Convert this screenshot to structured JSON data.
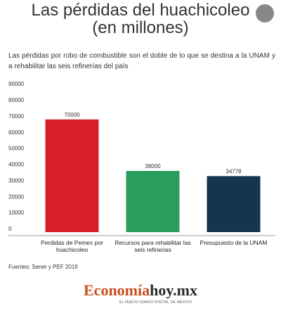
{
  "chart_data": {
    "type": "bar",
    "title": "Las pérdidas del huachicoleo (en millones)",
    "subtitle": "Las pérdidas por robo de combustible son el doble de lo que se destina a la UNAM y a rehabilitar las seis refinerías del país",
    "categories": [
      "Perdidas de Pemex por huachicoleo",
      "Recursos para rehabilitar las seis refinerias",
      "Presupuesto de la UNAM"
    ],
    "values": [
      70000,
      38000,
      34778
    ],
    "colors": [
      "#d71f27",
      "#2a9c5c",
      "#14354d"
    ],
    "ylim": [
      0,
      90000
    ],
    "yticks": [
      0,
      10000,
      20000,
      30000,
      40000,
      50000,
      60000,
      70000,
      80000,
      90000
    ],
    "grid": false,
    "source": "Fuentes: Sener y PEF 2019"
  },
  "logo": {
    "part_1": "Economía",
    "part_2": "hoy.mx",
    "tagline": "EL NUEVO DIARIO DIGITAL DE MÉXICO"
  }
}
